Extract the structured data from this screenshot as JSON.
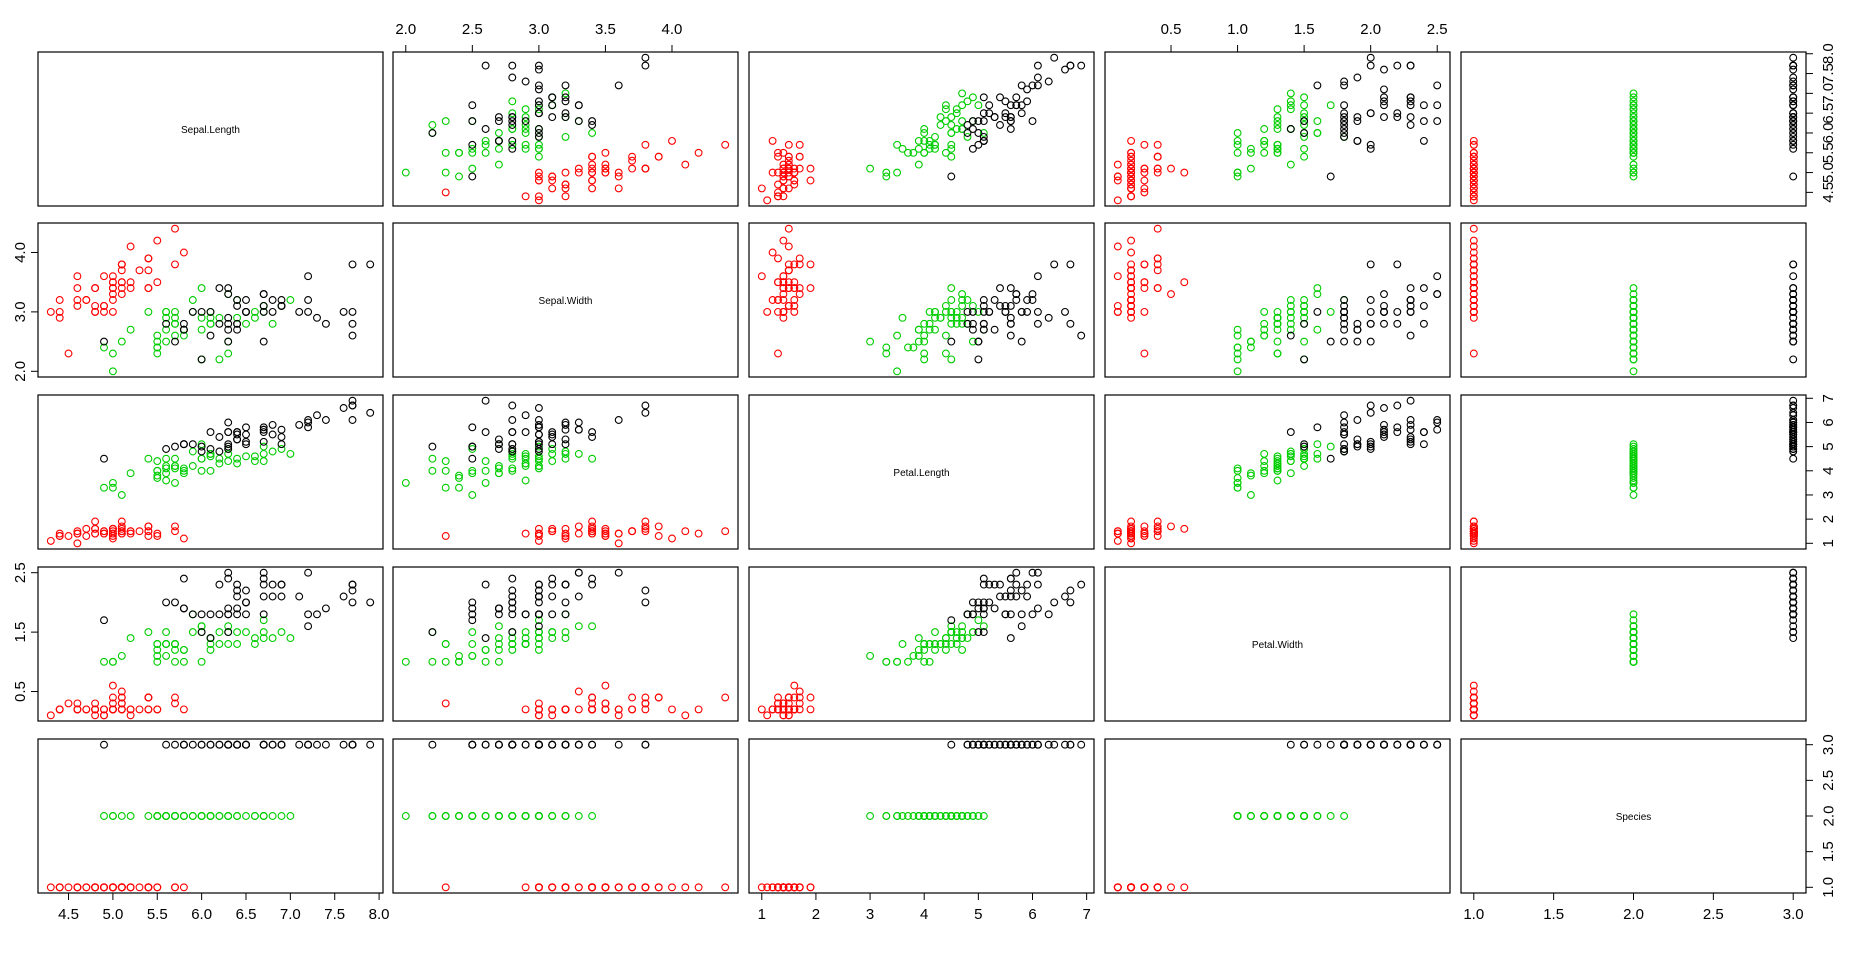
{
  "chart_data": {
    "type": "scatter",
    "title": "",
    "variables": [
      "Sepal.Length",
      "Sepal.Width",
      "Petal.Length",
      "Petal.Width",
      "Species"
    ],
    "ranges": [
      [
        4.3,
        7.9
      ],
      [
        2.0,
        4.4
      ],
      [
        1.0,
        6.9
      ],
      [
        0.1,
        2.5
      ],
      [
        1,
        3
      ]
    ],
    "ticks": [
      [
        "4.5",
        "5.0",
        "5.5",
        "6.0",
        "6.5",
        "7.0",
        "7.5",
        "8.0"
      ],
      [
        "2.0",
        "2.5",
        "3.0",
        "3.5",
        "4.0"
      ],
      [
        "1",
        "2",
        "3",
        "4",
        "5",
        "6",
        "7"
      ],
      [
        "0.5",
        "1.0",
        "1.5",
        "2.0",
        "2.5"
      ],
      [
        "1.0",
        "1.5",
        "2.0",
        "2.5",
        "3.0"
      ]
    ],
    "left_ticks": [
      [],
      [
        "2.0",
        "3.0",
        "4.0"
      ],
      [],
      [
        "0.5",
        "1.5",
        "2.5"
      ],
      []
    ],
    "grid": false,
    "legend": "none",
    "colors": {
      "1": "#ff0000",
      "2": "#00cd00",
      "3": "#000000"
    },
    "color_note_values": [
      "red",
      "green",
      "black"
    ],
    "points": [
      [
        5.1,
        3.5,
        1.4,
        0.2,
        1
      ],
      [
        4.9,
        3.0,
        1.4,
        0.2,
        1
      ],
      [
        4.7,
        3.2,
        1.3,
        0.2,
        1
      ],
      [
        4.6,
        3.1,
        1.5,
        0.2,
        1
      ],
      [
        5.0,
        3.6,
        1.4,
        0.2,
        1
      ],
      [
        5.4,
        3.9,
        1.7,
        0.4,
        1
      ],
      [
        4.6,
        3.4,
        1.4,
        0.3,
        1
      ],
      [
        5.0,
        3.4,
        1.5,
        0.2,
        1
      ],
      [
        4.4,
        2.9,
        1.4,
        0.2,
        1
      ],
      [
        4.9,
        3.1,
        1.5,
        0.1,
        1
      ],
      [
        5.4,
        3.7,
        1.5,
        0.2,
        1
      ],
      [
        4.8,
        3.4,
        1.6,
        0.2,
        1
      ],
      [
        4.8,
        3.0,
        1.4,
        0.1,
        1
      ],
      [
        4.3,
        3.0,
        1.1,
        0.1,
        1
      ],
      [
        5.8,
        4.0,
        1.2,
        0.2,
        1
      ],
      [
        5.7,
        4.4,
        1.5,
        0.4,
        1
      ],
      [
        5.4,
        3.9,
        1.3,
        0.4,
        1
      ],
      [
        5.1,
        3.5,
        1.4,
        0.3,
        1
      ],
      [
        5.7,
        3.8,
        1.7,
        0.3,
        1
      ],
      [
        5.1,
        3.8,
        1.5,
        0.3,
        1
      ],
      [
        5.4,
        3.4,
        1.7,
        0.2,
        1
      ],
      [
        5.1,
        3.7,
        1.5,
        0.4,
        1
      ],
      [
        4.6,
        3.6,
        1.0,
        0.2,
        1
      ],
      [
        5.1,
        3.3,
        1.7,
        0.5,
        1
      ],
      [
        4.8,
        3.4,
        1.9,
        0.2,
        1
      ],
      [
        5.0,
        3.0,
        1.6,
        0.2,
        1
      ],
      [
        5.0,
        3.4,
        1.6,
        0.4,
        1
      ],
      [
        5.2,
        3.5,
        1.5,
        0.2,
        1
      ],
      [
        5.2,
        3.4,
        1.4,
        0.2,
        1
      ],
      [
        4.7,
        3.2,
        1.6,
        0.2,
        1
      ],
      [
        4.8,
        3.1,
        1.6,
        0.2,
        1
      ],
      [
        5.4,
        3.4,
        1.5,
        0.4,
        1
      ],
      [
        5.2,
        4.1,
        1.5,
        0.1,
        1
      ],
      [
        5.5,
        4.2,
        1.4,
        0.2,
        1
      ],
      [
        4.9,
        3.1,
        1.5,
        0.2,
        1
      ],
      [
        5.0,
        3.2,
        1.2,
        0.2,
        1
      ],
      [
        5.5,
        3.5,
        1.3,
        0.2,
        1
      ],
      [
        4.9,
        3.6,
        1.4,
        0.1,
        1
      ],
      [
        4.4,
        3.0,
        1.3,
        0.2,
        1
      ],
      [
        5.1,
        3.4,
        1.5,
        0.2,
        1
      ],
      [
        5.0,
        3.5,
        1.3,
        0.3,
        1
      ],
      [
        4.5,
        2.3,
        1.3,
        0.3,
        1
      ],
      [
        4.4,
        3.2,
        1.3,
        0.2,
        1
      ],
      [
        5.0,
        3.5,
        1.6,
        0.6,
        1
      ],
      [
        5.1,
        3.8,
        1.9,
        0.4,
        1
      ],
      [
        4.8,
        3.0,
        1.4,
        0.3,
        1
      ],
      [
        5.1,
        3.8,
        1.6,
        0.2,
        1
      ],
      [
        4.6,
        3.2,
        1.4,
        0.2,
        1
      ],
      [
        5.3,
        3.7,
        1.5,
        0.2,
        1
      ],
      [
        5.0,
        3.3,
        1.4,
        0.2,
        1
      ],
      [
        7.0,
        3.2,
        4.7,
        1.4,
        2
      ],
      [
        6.4,
        3.2,
        4.5,
        1.5,
        2
      ],
      [
        6.9,
        3.1,
        4.9,
        1.5,
        2
      ],
      [
        5.5,
        2.3,
        4.0,
        1.3,
        2
      ],
      [
        6.5,
        2.8,
        4.6,
        1.5,
        2
      ],
      [
        5.7,
        2.8,
        4.5,
        1.3,
        2
      ],
      [
        6.3,
        3.3,
        4.7,
        1.6,
        2
      ],
      [
        4.9,
        2.4,
        3.3,
        1.0,
        2
      ],
      [
        6.6,
        2.9,
        4.6,
        1.3,
        2
      ],
      [
        5.2,
        2.7,
        3.9,
        1.4,
        2
      ],
      [
        5.0,
        2.0,
        3.5,
        1.0,
        2
      ],
      [
        5.9,
        3.0,
        4.2,
        1.5,
        2
      ],
      [
        6.0,
        2.2,
        4.0,
        1.0,
        2
      ],
      [
        6.1,
        2.9,
        4.7,
        1.4,
        2
      ],
      [
        5.6,
        2.9,
        3.6,
        1.3,
        2
      ],
      [
        6.7,
        3.1,
        4.4,
        1.4,
        2
      ],
      [
        5.6,
        3.0,
        4.5,
        1.5,
        2
      ],
      [
        5.8,
        2.7,
        4.1,
        1.0,
        2
      ],
      [
        6.2,
        2.2,
        4.5,
        1.5,
        2
      ],
      [
        5.6,
        2.5,
        3.9,
        1.1,
        2
      ],
      [
        5.9,
        3.2,
        4.8,
        1.8,
        2
      ],
      [
        6.1,
        2.8,
        4.0,
        1.3,
        2
      ],
      [
        6.3,
        2.5,
        4.9,
        1.5,
        2
      ],
      [
        6.1,
        2.8,
        4.7,
        1.2,
        2
      ],
      [
        6.4,
        2.9,
        4.3,
        1.3,
        2
      ],
      [
        6.6,
        3.0,
        4.4,
        1.4,
        2
      ],
      [
        6.8,
        2.8,
        4.8,
        1.4,
        2
      ],
      [
        6.7,
        3.0,
        5.0,
        1.7,
        2
      ],
      [
        6.0,
        2.9,
        4.5,
        1.5,
        2
      ],
      [
        5.7,
        2.6,
        3.5,
        1.0,
        2
      ],
      [
        5.5,
        2.4,
        3.8,
        1.1,
        2
      ],
      [
        5.5,
        2.4,
        3.7,
        1.0,
        2
      ],
      [
        5.8,
        2.7,
        3.9,
        1.2,
        2
      ],
      [
        6.0,
        2.7,
        5.1,
        1.6,
        2
      ],
      [
        5.4,
        3.0,
        4.5,
        1.5,
        2
      ],
      [
        6.0,
        3.4,
        4.5,
        1.6,
        2
      ],
      [
        6.7,
        3.1,
        4.7,
        1.5,
        2
      ],
      [
        6.3,
        2.3,
        4.4,
        1.3,
        2
      ],
      [
        5.6,
        3.0,
        4.1,
        1.3,
        2
      ],
      [
        5.5,
        2.5,
        4.0,
        1.3,
        2
      ],
      [
        5.5,
        2.6,
        4.4,
        1.2,
        2
      ],
      [
        6.1,
        3.0,
        4.6,
        1.4,
        2
      ],
      [
        5.8,
        2.6,
        4.0,
        1.2,
        2
      ],
      [
        5.0,
        2.3,
        3.3,
        1.0,
        2
      ],
      [
        5.6,
        2.7,
        4.2,
        1.3,
        2
      ],
      [
        5.7,
        3.0,
        4.2,
        1.2,
        2
      ],
      [
        5.7,
        2.9,
        4.2,
        1.3,
        2
      ],
      [
        6.2,
        2.9,
        4.3,
        1.3,
        2
      ],
      [
        5.1,
        2.5,
        3.0,
        1.1,
        2
      ],
      [
        5.7,
        2.8,
        4.1,
        1.3,
        2
      ],
      [
        6.3,
        3.3,
        6.0,
        2.5,
        3
      ],
      [
        5.8,
        2.7,
        5.1,
        1.9,
        3
      ],
      [
        7.1,
        3.0,
        5.9,
        2.1,
        3
      ],
      [
        6.3,
        2.9,
        5.6,
        1.8,
        3
      ],
      [
        6.5,
        3.0,
        5.8,
        2.2,
        3
      ],
      [
        7.6,
        3.0,
        6.6,
        2.1,
        3
      ],
      [
        4.9,
        2.5,
        4.5,
        1.7,
        3
      ],
      [
        7.3,
        2.9,
        6.3,
        1.8,
        3
      ],
      [
        6.7,
        2.5,
        5.8,
        1.8,
        3
      ],
      [
        7.2,
        3.6,
        6.1,
        2.5,
        3
      ],
      [
        6.5,
        3.2,
        5.1,
        2.0,
        3
      ],
      [
        6.4,
        2.7,
        5.3,
        1.9,
        3
      ],
      [
        6.8,
        3.0,
        5.5,
        2.1,
        3
      ],
      [
        5.7,
        2.5,
        5.0,
        2.0,
        3
      ],
      [
        5.8,
        2.8,
        5.1,
        2.4,
        3
      ],
      [
        6.4,
        3.2,
        5.3,
        2.3,
        3
      ],
      [
        6.5,
        3.0,
        5.5,
        1.8,
        3
      ],
      [
        7.7,
        3.8,
        6.7,
        2.2,
        3
      ],
      [
        7.7,
        2.6,
        6.9,
        2.3,
        3
      ],
      [
        6.0,
        2.2,
        5.0,
        1.5,
        3
      ],
      [
        6.9,
        3.2,
        5.7,
        2.3,
        3
      ],
      [
        5.6,
        2.8,
        4.9,
        2.0,
        3
      ],
      [
        7.7,
        2.8,
        6.7,
        2.0,
        3
      ],
      [
        6.3,
        2.7,
        4.9,
        1.8,
        3
      ],
      [
        6.7,
        3.3,
        5.7,
        2.1,
        3
      ],
      [
        7.2,
        3.2,
        6.0,
        1.8,
        3
      ],
      [
        6.2,
        2.8,
        4.8,
        1.8,
        3
      ],
      [
        6.1,
        3.0,
        4.9,
        1.8,
        3
      ],
      [
        6.4,
        2.8,
        5.6,
        2.1,
        3
      ],
      [
        7.2,
        3.0,
        5.8,
        1.6,
        3
      ],
      [
        7.4,
        2.8,
        6.1,
        1.9,
        3
      ],
      [
        7.9,
        3.8,
        6.4,
        2.0,
        3
      ],
      [
        6.4,
        2.8,
        5.6,
        2.2,
        3
      ],
      [
        6.3,
        2.8,
        5.1,
        1.5,
        3
      ],
      [
        6.1,
        2.6,
        5.6,
        1.4,
        3
      ],
      [
        7.7,
        3.0,
        6.1,
        2.3,
        3
      ],
      [
        6.3,
        3.4,
        5.6,
        2.4,
        3
      ],
      [
        6.4,
        3.1,
        5.5,
        1.8,
        3
      ],
      [
        6.0,
        3.0,
        4.8,
        1.8,
        3
      ],
      [
        6.9,
        3.1,
        5.4,
        2.1,
        3
      ],
      [
        6.7,
        3.1,
        5.6,
        2.4,
        3
      ],
      [
        6.9,
        3.1,
        5.1,
        2.3,
        3
      ],
      [
        5.8,
        2.7,
        5.1,
        1.9,
        3
      ],
      [
        6.8,
        3.2,
        5.9,
        2.3,
        3
      ],
      [
        6.7,
        3.3,
        5.7,
        2.5,
        3
      ],
      [
        6.7,
        3.0,
        5.2,
        2.3,
        3
      ],
      [
        6.3,
        2.5,
        5.0,
        1.9,
        3
      ],
      [
        6.5,
        3.0,
        5.2,
        2.0,
        3
      ],
      [
        6.2,
        3.4,
        5.4,
        2.3,
        3
      ],
      [
        5.9,
        3.0,
        5.1,
        1.8,
        3
      ]
    ]
  }
}
